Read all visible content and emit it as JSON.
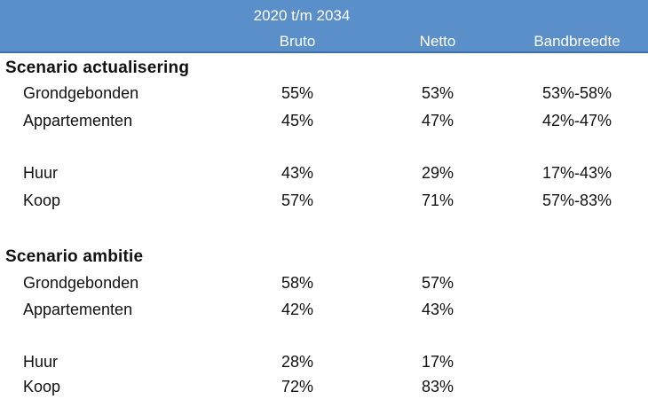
{
  "header": {
    "period": "2020 t/m 2034",
    "columns": {
      "bruto": "Bruto",
      "netto": "Netto",
      "bandbreedte": "Bandbreedte"
    }
  },
  "sections": [
    {
      "title": "Scenario actualisering",
      "rows": [
        {
          "label": "Grondgebonden",
          "bruto": "55%",
          "netto": "53%",
          "bandbreedte": "53%-58%"
        },
        {
          "label": "Appartementen",
          "bruto": "45%",
          "netto": "47%",
          "bandbreedte": "42%-47%"
        },
        {
          "label": "Huur",
          "bruto": "43%",
          "netto": "29%",
          "bandbreedte": "17%-43%"
        },
        {
          "label": "Koop",
          "bruto": "57%",
          "netto": "71%",
          "bandbreedte": "57%-83%"
        }
      ]
    },
    {
      "title": "Scenario ambitie",
      "rows": [
        {
          "label": "Grondgebonden",
          "bruto": "58%",
          "netto": "57%",
          "bandbreedte": ""
        },
        {
          "label": "Appartementen",
          "bruto": "42%",
          "netto": "43%",
          "bandbreedte": ""
        },
        {
          "label": "Huur",
          "bruto": "28%",
          "netto": "17%",
          "bandbreedte": ""
        },
        {
          "label": "Koop",
          "bruto": "72%",
          "netto": "83%",
          "bandbreedte": ""
        }
      ]
    }
  ]
}
